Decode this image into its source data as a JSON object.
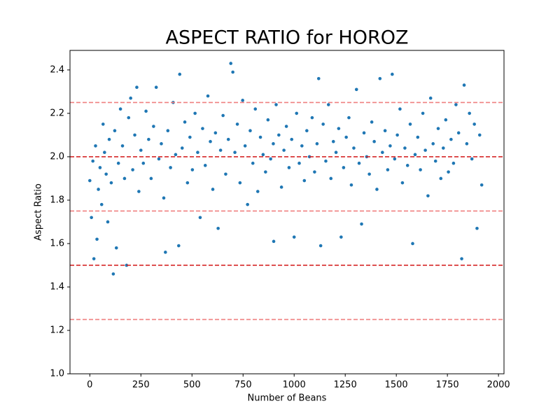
{
  "chart_data": {
    "type": "scatter",
    "title": "ASPECT RATIO for HOROZ",
    "x_label": "Number of Beans",
    "y_label": "Aspect Ratio",
    "color": "#1f77b4",
    "x": [
      0,
      8,
      15,
      20,
      28,
      35,
      42,
      50,
      58,
      65,
      72,
      80,
      88,
      95,
      105,
      115,
      122,
      130,
      140,
      150,
      160,
      170,
      180,
      190,
      200,
      210,
      220,
      230,
      240,
      250,
      262,
      275,
      288,
      300,
      312,
      325,
      338,
      350,
      362,
      370,
      382,
      395,
      408,
      420,
      435,
      440,
      452,
      465,
      478,
      490,
      502,
      515,
      528,
      540,
      552,
      565,
      578,
      590,
      602,
      615,
      628,
      640,
      652,
      665,
      678,
      690,
      700,
      710,
      722,
      735,
      748,
      760,
      772,
      785,
      798,
      810,
      822,
      835,
      848,
      860,
      872,
      885,
      898,
      900,
      912,
      925,
      938,
      950,
      962,
      975,
      988,
      1000,
      1012,
      1025,
      1038,
      1050,
      1062,
      1075,
      1088,
      1100,
      1112,
      1120,
      1130,
      1142,
      1155,
      1168,
      1180,
      1192,
      1205,
      1218,
      1230,
      1242,
      1255,
      1268,
      1280,
      1292,
      1305,
      1318,
      1330,
      1342,
      1355,
      1368,
      1380,
      1392,
      1405,
      1420,
      1432,
      1445,
      1458,
      1470,
      1480,
      1492,
      1505,
      1518,
      1530,
      1542,
      1555,
      1568,
      1580,
      1592,
      1605,
      1618,
      1630,
      1642,
      1655,
      1668,
      1680,
      1692,
      1705,
      1718,
      1730,
      1742,
      1755,
      1768,
      1780,
      1792,
      1805,
      1820,
      1832,
      1845,
      1858,
      1870,
      1882,
      1895,
      1908,
      1918
    ],
    "values": [
      1.89,
      1.72,
      1.98,
      1.53,
      2.05,
      1.62,
      1.85,
      1.95,
      1.78,
      2.15,
      2.02,
      1.92,
      1.7,
      2.08,
      1.88,
      1.46,
      2.12,
      1.58,
      1.97,
      2.22,
      2.05,
      1.9,
      1.5,
      2.18,
      2.27,
      1.94,
      2.1,
      2.32,
      1.84,
      2.03,
      1.97,
      2.21,
      2.08,
      1.9,
      2.14,
      2.32,
      1.99,
      2.06,
      1.81,
      1.56,
      2.12,
      1.95,
      2.25,
      2.01,
      1.59,
      2.38,
      2.04,
      2.16,
      1.88,
      2.09,
      1.94,
      2.2,
      2.02,
      1.72,
      2.13,
      1.96,
      2.28,
      2.07,
      1.85,
      2.11,
      1.67,
      2.03,
      2.19,
      1.92,
      2.08,
      2.43,
      2.39,
      2.02,
      2.15,
      1.88,
      2.26,
      2.05,
      1.78,
      2.12,
      1.97,
      2.22,
      1.84,
      2.09,
      2.01,
      1.93,
      2.17,
      1.99,
      2.06,
      1.61,
      2.24,
      2.1,
      1.86,
      2.03,
      2.14,
      1.95,
      2.08,
      1.63,
      2.2,
      1.97,
      2.05,
      1.89,
      2.12,
      2.0,
      2.18,
      1.93,
      2.06,
      2.36,
      1.59,
      2.15,
      1.98,
      2.24,
      1.9,
      2.07,
      2.02,
      2.13,
      1.63,
      1.95,
      2.09,
      2.18,
      1.87,
      2.04,
      2.31,
      1.97,
      1.69,
      2.11,
      2.0,
      1.92,
      2.16,
      2.07,
      1.85,
      2.36,
      2.02,
      2.12,
      1.94,
      2.05,
      2.38,
      1.99,
      2.1,
      2.22,
      1.88,
      2.04,
      1.96,
      2.15,
      1.6,
      2.01,
      2.09,
      1.94,
      2.2,
      2.03,
      1.82,
      2.27,
      2.06,
      1.98,
      2.13,
      1.9,
      2.04,
      2.17,
      1.93,
      2.08,
      1.97,
      2.24,
      2.11,
      1.53,
      2.33,
      2.06,
      2.2,
      1.99,
      2.15,
      1.67,
      2.1,
      1.87
    ],
    "xlim": [
      -97,
      2027
    ],
    "ylim": [
      1.0,
      2.49
    ],
    "xticks": [
      0,
      250,
      500,
      750,
      1000,
      1250,
      1500,
      1750,
      2000
    ],
    "yticks": [
      {
        "value": 1,
        "label": "1.0"
      },
      1.2,
      1.4,
      1.6,
      1.8,
      {
        "value": 2,
        "label": "2.0"
      },
      2.2,
      2.4
    ],
    "hlines": [
      {
        "value": 2.25,
        "color": "#f08080"
      },
      {
        "value": 2.0,
        "color": "#d62728"
      },
      {
        "value": 1.75,
        "color": "#f08080"
      },
      {
        "value": 1.5,
        "color": "#d62728"
      },
      {
        "value": 1.25,
        "color": "#f08080"
      }
    ]
  }
}
